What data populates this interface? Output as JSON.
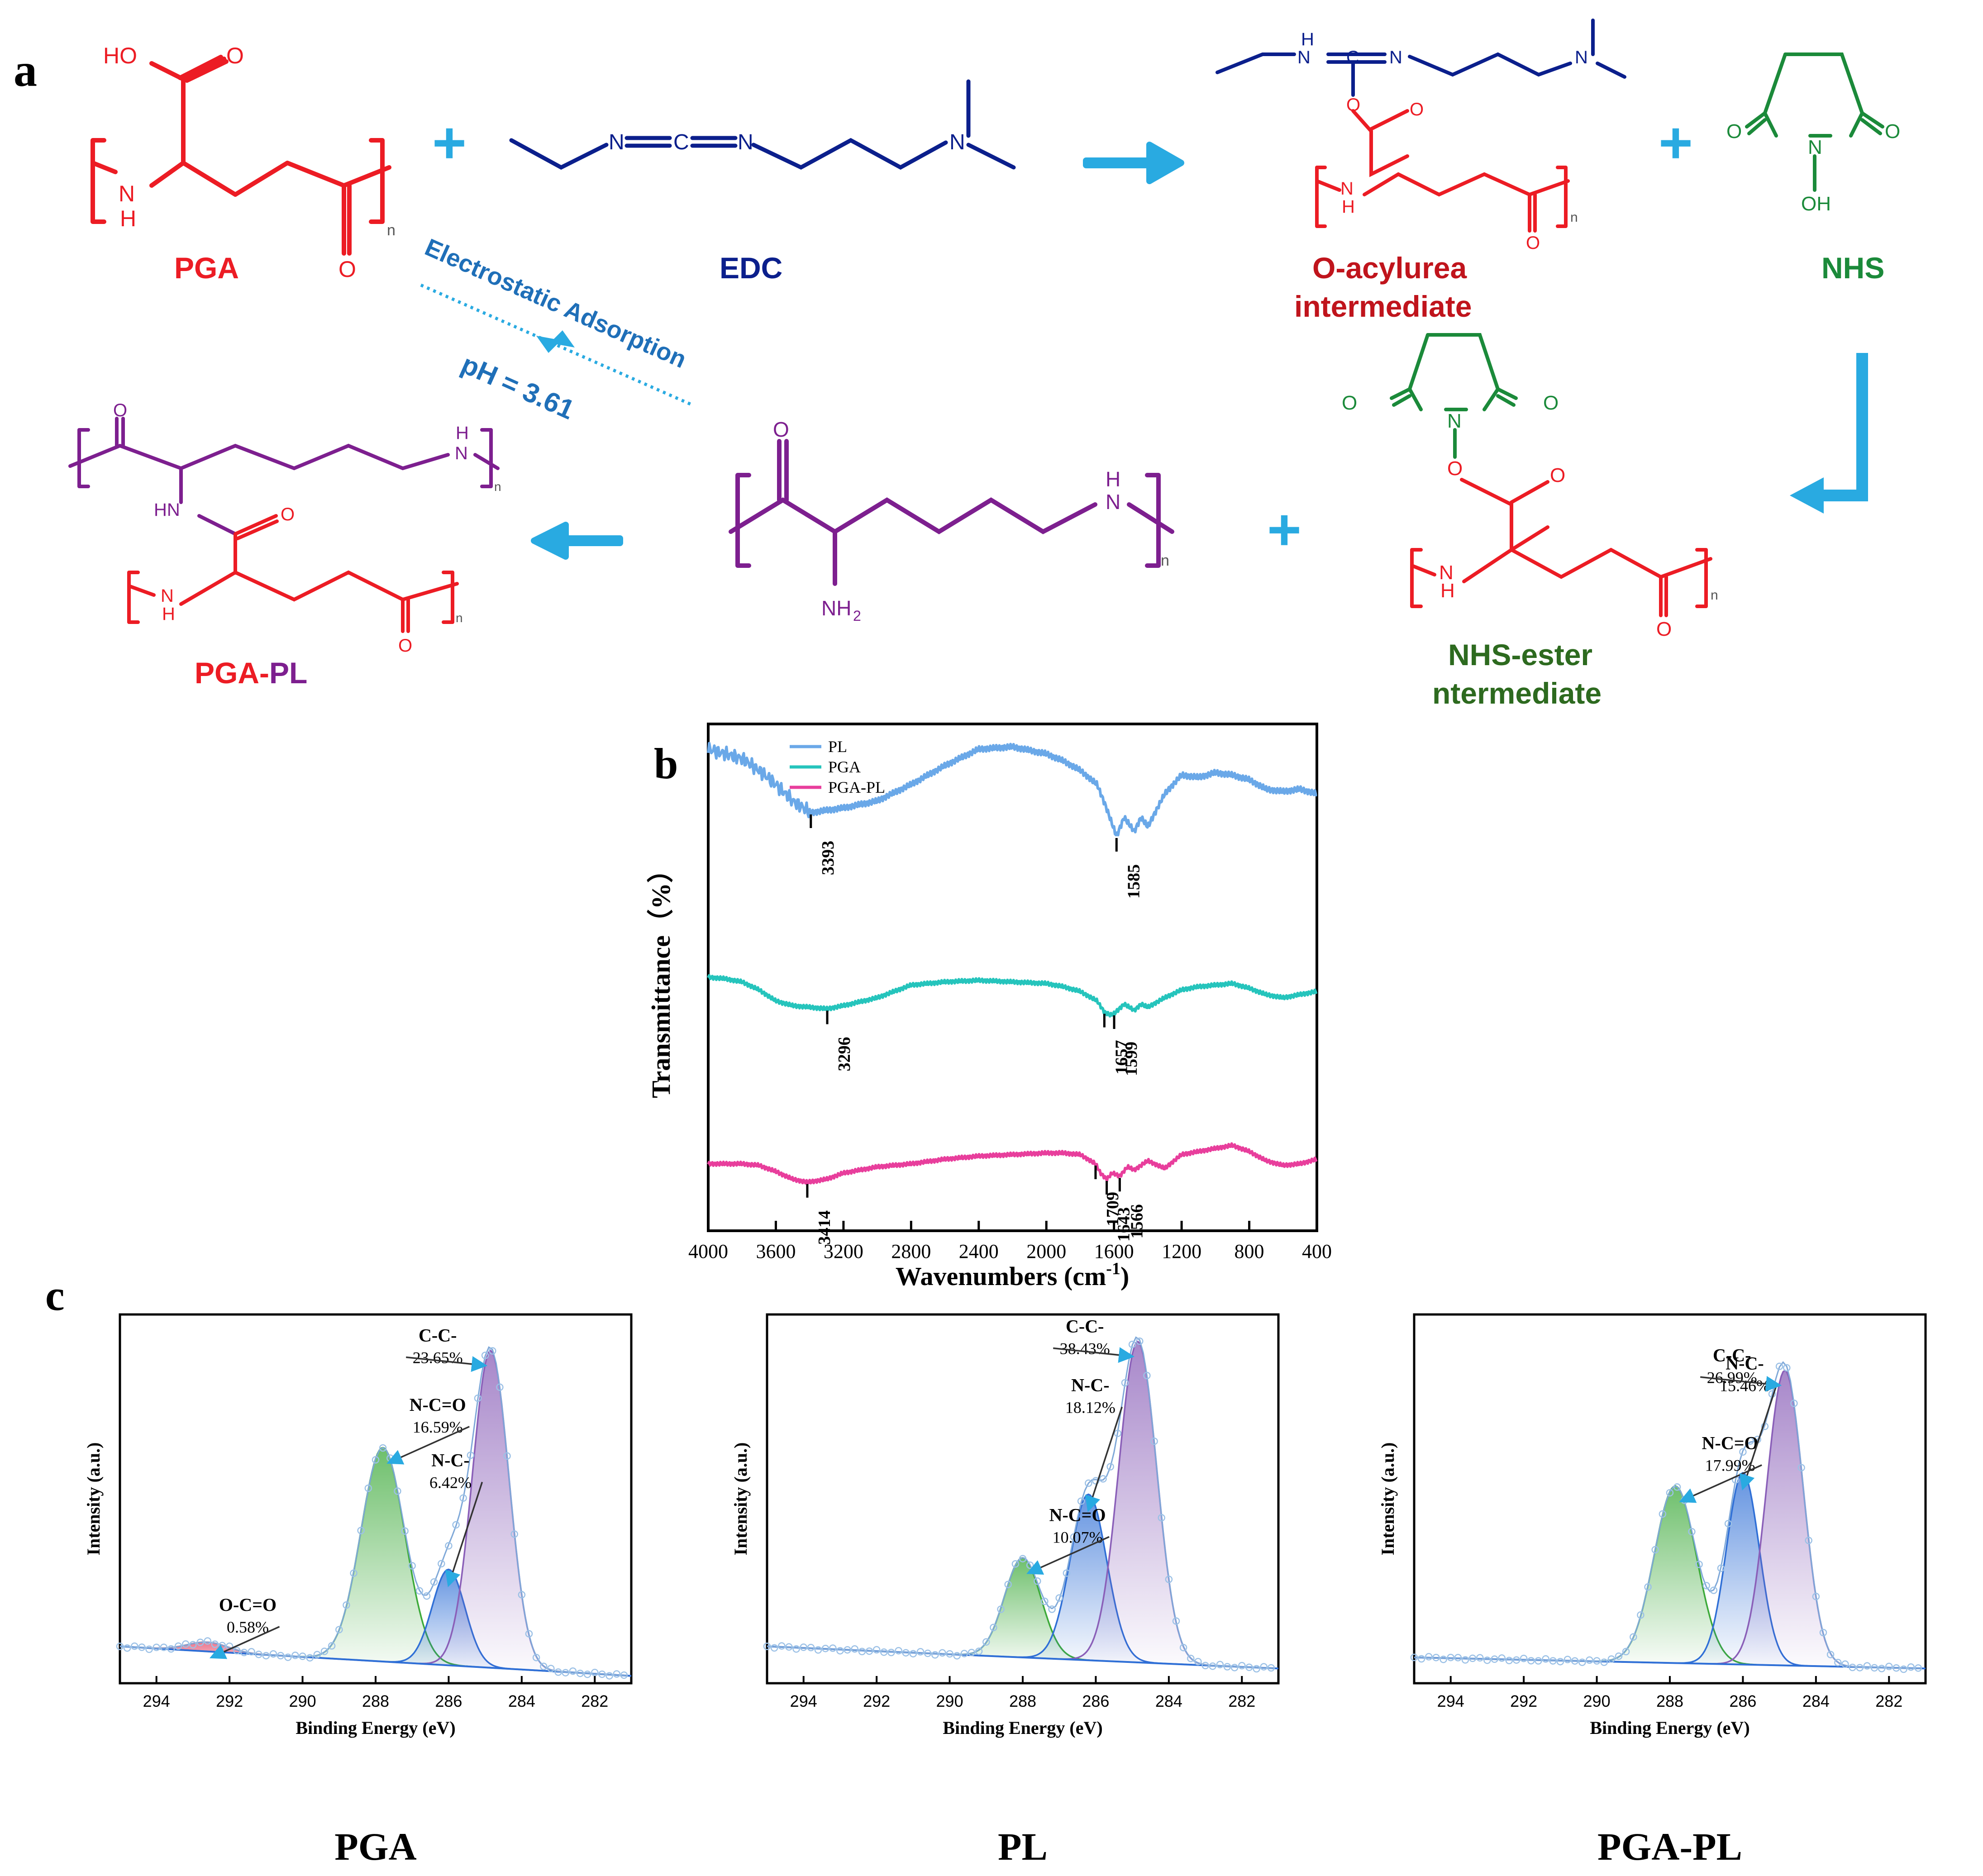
{
  "panel_letters": {
    "a": "a",
    "b": "b",
    "c": "c"
  },
  "scheme": {
    "labels": {
      "pga": "PGA",
      "edc": "EDC",
      "o_acylurea_line1": "O-acylurea",
      "o_acylurea_line2": "intermediate",
      "nhs": "NHS",
      "nhs_ester_line1": "NHS-ester",
      "nhs_ester_line2": "ntermediate",
      "pga_pl_part1": "PGA",
      "pga_pl_part2": "-",
      "pga_pl_part3": "PL"
    },
    "annotations": {
      "electrostatic": "Electrostatic Adsorption",
      "ph": "pH = 3.61"
    },
    "atoms": {
      "ho": "HO",
      "o": "O",
      "h": "H",
      "n": "N",
      "nh": "NH",
      "hn": "HN",
      "c": "C",
      "oh": "OH",
      "nh2": "NH",
      "nh2_sub": "2",
      "sub_n": "n"
    },
    "plus": "+",
    "colors": {
      "pga": "#ec1c24",
      "edc": "#0b1f8c",
      "nhs": "#1b8a3a",
      "nhs_ester_label": "#2d6a1f",
      "pl": "#7d1f8f",
      "arrow": "#29aae1",
      "annotation": "#1f6fb8",
      "o_acylurea_label": "#c0141c"
    }
  },
  "chart_data": [
    {
      "type": "line",
      "panel": "b",
      "xlabel": "Wavenumbers (cm",
      "xlabel_sup": "-1",
      "xlabel_end": ")",
      "ylabel": "Transmittance（%）",
      "xlim": [
        4000,
        400
      ],
      "xticks": [
        4000,
        3600,
        3200,
        2800,
        2400,
        2000,
        1600,
        1200,
        800,
        400
      ],
      "legend_position": "top-left",
      "series": [
        {
          "name": "PL",
          "color": "#6aa8e8",
          "x": [
            4000,
            3900,
            3800,
            3700,
            3600,
            3500,
            3393,
            3300,
            3200,
            3000,
            2800,
            2600,
            2400,
            2200,
            2000,
            1900,
            1800,
            1700,
            1650,
            1585,
            1540,
            1480,
            1440,
            1400,
            1300,
            1200,
            1100,
            1000,
            900,
            800,
            700,
            600,
            500,
            400
          ],
          "y": [
            0.97,
            0.95,
            0.93,
            0.88,
            0.82,
            0.75,
            0.7,
            0.71,
            0.72,
            0.75,
            0.82,
            0.9,
            0.97,
            0.98,
            0.95,
            0.92,
            0.88,
            0.82,
            0.73,
            0.6,
            0.68,
            0.62,
            0.68,
            0.64,
            0.78,
            0.86,
            0.85,
            0.87,
            0.86,
            0.84,
            0.8,
            0.79,
            0.8,
            0.78
          ]
        },
        {
          "name": "PGA",
          "color": "#25c4bc",
          "x": [
            4000,
            3900,
            3800,
            3700,
            3600,
            3500,
            3400,
            3296,
            3200,
            3000,
            2800,
            2600,
            2400,
            2200,
            2000,
            1900,
            1800,
            1700,
            1657,
            1620,
            1599,
            1540,
            1480,
            1440,
            1400,
            1300,
            1200,
            1100,
            1000,
            900,
            800,
            700,
            600,
            500,
            400
          ],
          "y": [
            0.63,
            0.62,
            0.6,
            0.55,
            0.48,
            0.45,
            0.44,
            0.43,
            0.45,
            0.5,
            0.58,
            0.6,
            0.61,
            0.6,
            0.59,
            0.57,
            0.54,
            0.48,
            0.41,
            0.39,
            0.4,
            0.46,
            0.42,
            0.46,
            0.44,
            0.5,
            0.55,
            0.57,
            0.58,
            0.59,
            0.56,
            0.52,
            0.5,
            0.52,
            0.54
          ]
        },
        {
          "name": "PGA-PL",
          "color": "#e83e9c",
          "x": [
            4000,
            3900,
            3800,
            3700,
            3600,
            3500,
            3414,
            3300,
            3200,
            3000,
            2800,
            2600,
            2400,
            2200,
            2000,
            1900,
            1800,
            1709,
            1680,
            1643,
            1610,
            1566,
            1520,
            1480,
            1400,
            1300,
            1200,
            1100,
            1000,
            900,
            800,
            700,
            600,
            500,
            400
          ],
          "y": [
            0.2,
            0.2,
            0.2,
            0.19,
            0.15,
            0.1,
            0.08,
            0.1,
            0.14,
            0.18,
            0.2,
            0.23,
            0.25,
            0.26,
            0.27,
            0.27,
            0.26,
            0.2,
            0.14,
            0.1,
            0.14,
            0.12,
            0.18,
            0.16,
            0.22,
            0.17,
            0.26,
            0.28,
            0.3,
            0.32,
            0.28,
            0.22,
            0.19,
            0.2,
            0.23
          ]
        }
      ],
      "peak_labels": [
        {
          "series": "PL",
          "x": 3393,
          "text": "3393"
        },
        {
          "series": "PL",
          "x": 1585,
          "text": "1585"
        },
        {
          "series": "PGA",
          "x": 3296,
          "text": "3296"
        },
        {
          "series": "PGA",
          "x": 1657,
          "text": "1657"
        },
        {
          "series": "PGA",
          "x": 1599,
          "text": "1599"
        },
        {
          "series": "PGA-PL",
          "x": 3414,
          "text": "3414"
        },
        {
          "series": "PGA-PL",
          "x": 1709,
          "text": "1709"
        },
        {
          "series": "PGA-PL",
          "x": 1643,
          "text": "1643"
        },
        {
          "series": "PGA-PL",
          "x": 1566,
          "text": "1566"
        }
      ]
    },
    {
      "type": "area",
      "panel": "c",
      "sample": "PGA",
      "caption": "PGA",
      "xlabel": "Binding Energy (eV)",
      "ylabel": "Intensity (a.u.)",
      "xlim": [
        295,
        281
      ],
      "xticks": [
        294,
        292,
        290,
        288,
        286,
        284,
        282
      ],
      "background": [
        0.1,
        0.02
      ],
      "peaks": [
        {
          "name": "O-C=O",
          "percent": "0.58%",
          "center": 292.6,
          "height": 0.025,
          "sigma": 0.55,
          "color": "#e54b6a"
        },
        {
          "name": "N-C=O",
          "percent": "16.59%",
          "center": 287.8,
          "height": 0.58,
          "sigma": 0.6,
          "color": "#3daa3a"
        },
        {
          "name": "N-C-",
          "percent": "6.42%",
          "center": 286.0,
          "height": 0.26,
          "sigma": 0.45,
          "color": "#2f6fd6"
        },
        {
          "name": "C-C-",
          "percent": "23.65%",
          "center": 284.85,
          "height": 0.86,
          "sigma": 0.5,
          "color": "#8a5fb8"
        }
      ]
    },
    {
      "type": "area",
      "panel": "c",
      "sample": "PL",
      "caption": "PL",
      "xlabel": "Binding Energy (eV)",
      "ylabel": "Intensity (a.u.)",
      "xlim": [
        295,
        281
      ],
      "xticks": [
        294,
        292,
        290,
        288,
        286,
        284,
        282
      ],
      "background": [
        0.1,
        0.04
      ],
      "peaks": [
        {
          "name": "N-C=O",
          "percent": "10.07%",
          "center": 288.0,
          "height": 0.27,
          "sigma": 0.5,
          "color": "#3daa3a"
        },
        {
          "name": "N-C-",
          "percent": "18.12%",
          "center": 286.2,
          "height": 0.45,
          "sigma": 0.5,
          "color": "#2f6fd6"
        },
        {
          "name": "C-C-",
          "percent": "38.43%",
          "center": 284.85,
          "height": 0.87,
          "sigma": 0.52,
          "color": "#8a5fb8"
        }
      ]
    },
    {
      "type": "area",
      "panel": "c",
      "sample": "PGA-PL",
      "caption": "PGA-PL",
      "xlabel": "Binding Energy (eV)",
      "ylabel": "Intensity (a.u.)",
      "xlim": [
        295,
        281
      ],
      "xticks": [
        294,
        292,
        290,
        288,
        286,
        284,
        282
      ],
      "background": [
        0.07,
        0.04
      ],
      "peaks": [
        {
          "name": "N-C=O",
          "percent": "17.99%",
          "center": 287.85,
          "height": 0.48,
          "sigma": 0.58,
          "color": "#3daa3a"
        },
        {
          "name": "N-C-",
          "percent": "15.46%",
          "center": 286.0,
          "height": 0.52,
          "sigma": 0.45,
          "color": "#2f6fd6"
        },
        {
          "name": "C-C-",
          "percent": "26.99%",
          "center": 284.85,
          "height": 0.8,
          "sigma": 0.5,
          "color": "#8a5fb8"
        }
      ]
    }
  ]
}
